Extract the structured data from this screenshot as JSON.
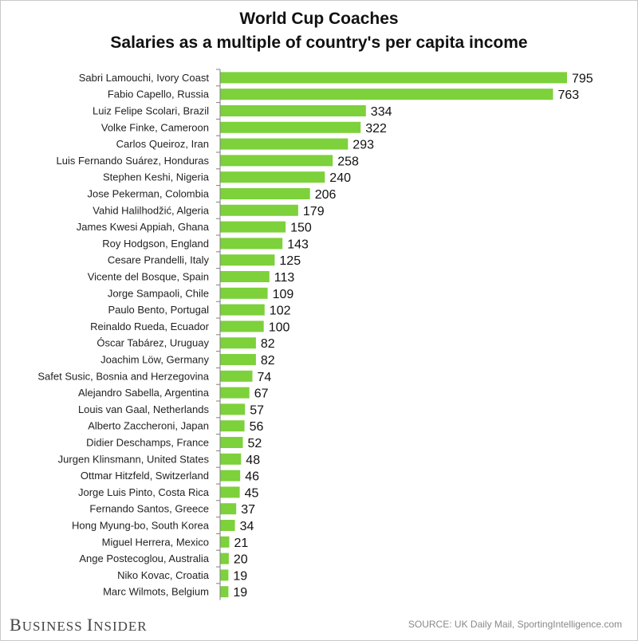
{
  "chart_data": {
    "type": "bar",
    "orientation": "horizontal",
    "title": "World Cup Coaches",
    "subtitle": "Salaries as a multiple of country's per capita income",
    "categories": [
      "Sabri Lamouchi, Ivory Coast",
      "Fabio Capello, Russia",
      "Luiz Felipe Scolari, Brazil",
      "Volke Finke, Cameroon",
      "Carlos Queiroz, Iran",
      "Luis Fernando Suárez, Honduras",
      "Stephen Keshi, Nigeria",
      "Jose Pekerman, Colombia",
      "Vahid Halilhodžić, Algeria",
      "James Kwesi Appiah, Ghana",
      "Roy Hodgson, England",
      "Cesare Prandelli, Italy",
      "Vicente del Bosque, Spain",
      "Jorge Sampaoli, Chile",
      "Paulo Bento, Portugal",
      "Reinaldo Rueda, Ecuador",
      "Óscar Tabárez, Uruguay",
      "Joachim Löw, Germany",
      "Safet Susic, Bosnia and Herzegovina",
      "Alejandro Sabella, Argentina",
      "Louis van Gaal, Netherlands",
      "Alberto Zaccheroni, Japan",
      "Didier Deschamps, France",
      "Jurgen Klinsmann, United States",
      "Ottmar Hitzfeld, Switzerland",
      "Jorge Luis Pinto, Costa Rica",
      "Fernando Santos, Greece",
      "Hong Myung-bo, South Korea",
      "Miguel Herrera, Mexico",
      "Ange Postecoglou, Australia",
      "Niko Kovac, Croatia",
      "Marc Wilmots, Belgium"
    ],
    "values": [
      795,
      763,
      334,
      322,
      293,
      258,
      240,
      206,
      179,
      150,
      143,
      125,
      113,
      109,
      102,
      100,
      82,
      82,
      74,
      67,
      57,
      56,
      52,
      48,
      46,
      45,
      37,
      34,
      21,
      20,
      19,
      19
    ],
    "xlim": [
      0,
      800
    ],
    "grid": false,
    "legend": "none",
    "bar_color": "#7dd13b",
    "axis_color": "#7f7f7f"
  },
  "footer": {
    "logo_big_b": "B",
    "logo_usiness": "USINESS ",
    "logo_big_i": "I",
    "logo_nsider": "NSIDER",
    "source": "SOURCE: UK Daily Mail, SportingIntelligence.com"
  }
}
